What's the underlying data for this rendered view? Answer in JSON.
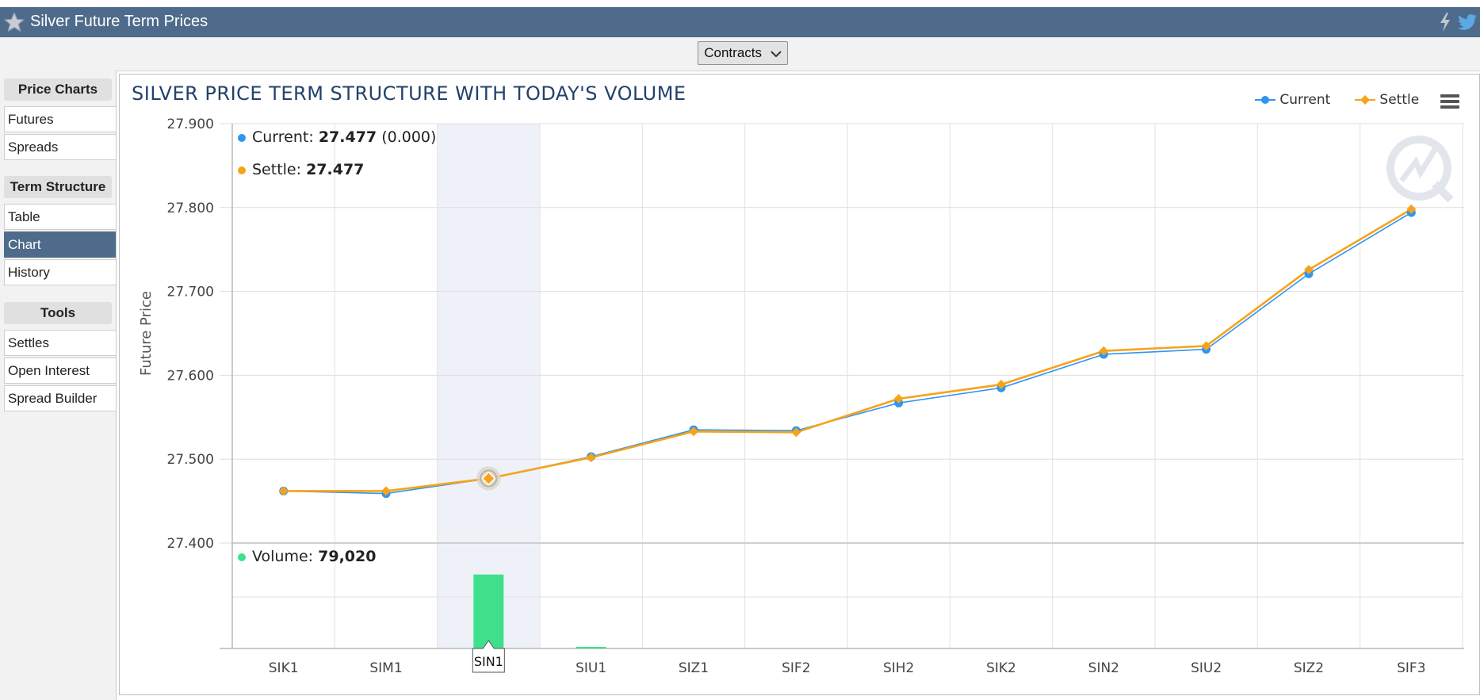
{
  "header": {
    "title": "Silver Future Term Prices"
  },
  "toolbar": {
    "contracts_label": "Contracts"
  },
  "sidebar": {
    "sections": [
      {
        "title": "Price Charts",
        "items": [
          "Futures",
          "Spreads"
        ]
      },
      {
        "title": "Term Structure",
        "items": [
          "Table",
          "Chart",
          "History"
        ]
      },
      {
        "title": "Tools",
        "items": [
          "Settles",
          "Open Interest",
          "Spread Builder"
        ]
      }
    ],
    "active": "Chart"
  },
  "colors": {
    "current": "#2f95f3",
    "settle": "#f7a31a",
    "volume": "#3fe08c",
    "header": "#4e6b8b"
  },
  "chart_data": {
    "type": "line",
    "title": "SILVER PRICE TERM STRUCTURE WITH TODAY'S VOLUME",
    "ylabel": "Future Price",
    "xlabel": "",
    "categories": [
      "SIK1",
      "SIM1",
      "SIN1",
      "SIU1",
      "SIZ1",
      "SIF2",
      "SIH2",
      "SIK2",
      "SIN2",
      "SIU2",
      "SIZ2",
      "SIF3"
    ],
    "ylim": [
      27.4,
      27.9
    ],
    "yticks": [
      "27.900",
      "27.800",
      "27.700",
      "27.600",
      "27.500",
      "27.400"
    ],
    "series": [
      {
        "name": "Current",
        "values": [
          27.462,
          27.459,
          27.477,
          27.503,
          27.535,
          27.534,
          27.567,
          27.585,
          27.625,
          27.631,
          27.721,
          27.794
        ]
      },
      {
        "name": "Settle",
        "values": [
          27.462,
          27.462,
          27.477,
          27.502,
          27.533,
          27.532,
          27.572,
          27.589,
          27.629,
          27.635,
          27.726,
          27.798
        ]
      }
    ],
    "volume": {
      "name": "Volume",
      "values": [
        0,
        0,
        79020,
        1500,
        0,
        0,
        0,
        0,
        0,
        0,
        0,
        0
      ]
    },
    "legend": "top-right",
    "grid": true,
    "highlight_index": 2,
    "tooltip": {
      "current_label": "Current",
      "current_value": "27.477",
      "current_change": "(0.000)",
      "settle_label": "Settle",
      "settle_value": "27.477",
      "volume_label": "Volume",
      "volume_value": "79,020",
      "category_label": "SIN1"
    }
  }
}
